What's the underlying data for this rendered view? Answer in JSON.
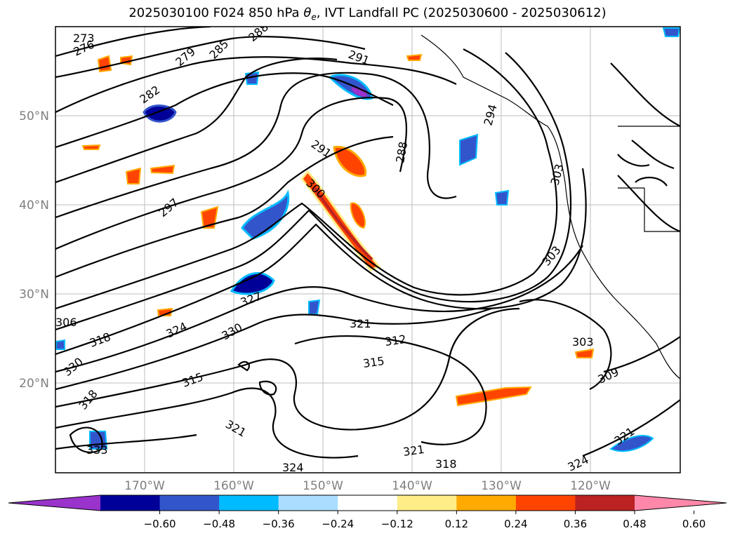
{
  "title": {
    "run": "2025030100 F024 850 hPa",
    "var": "θ",
    "var_sub": "e",
    "rest": ", IVT Landfall PC (2025030600 - 2025030612)"
  },
  "map": {
    "extent": {
      "lon": [
        -180,
        -110
      ],
      "lat": [
        10,
        60
      ]
    },
    "lat_labels": [
      "50°N",
      "40°N",
      "30°N",
      "20°N"
    ],
    "lon_labels": [
      "170°W",
      "160°W",
      "150°W",
      "140°W",
      "130°W",
      "120°W"
    ],
    "contour_labels": [
      "273",
      "276",
      "279",
      "282",
      "285",
      "288",
      "291",
      "291",
      "291",
      "294",
      "288",
      "297",
      "303",
      "306",
      "303",
      "300",
      "303",
      "309",
      "312",
      "315",
      "318",
      "321",
      "324",
      "327",
      "330",
      "330",
      "306",
      "315",
      "318",
      "321",
      "324",
      "333",
      "315",
      "318",
      "321",
      "318",
      "324",
      "321",
      "318",
      "315",
      "312",
      "309",
      "312"
    ]
  },
  "colorbar": {
    "ticks": [
      "−0.60",
      "−0.48",
      "−0.36",
      "−0.24",
      "−0.12",
      "0.12",
      "0.24",
      "0.36",
      "0.48",
      "0.60"
    ],
    "colors": [
      "#9933cc",
      "#000099",
      "#3355cc",
      "#00bbff",
      "#aaddff",
      "#ffffff",
      "#ffee88",
      "#ffaa00",
      "#ff4400",
      "#bb2222",
      "#ff88aa"
    ]
  }
}
